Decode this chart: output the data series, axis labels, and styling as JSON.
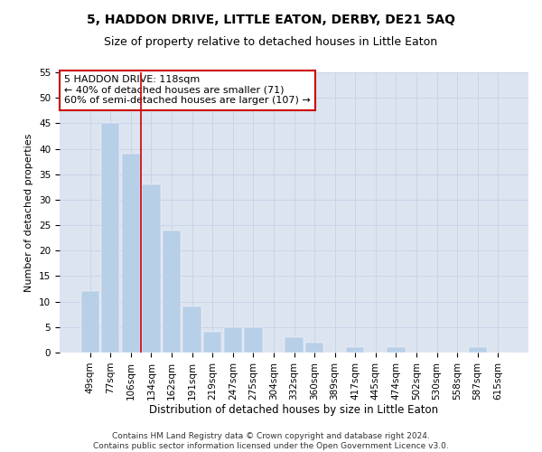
{
  "title": "5, HADDON DRIVE, LITTLE EATON, DERBY, DE21 5AQ",
  "subtitle": "Size of property relative to detached houses in Little Eaton",
  "xlabel": "Distribution of detached houses by size in Little Eaton",
  "ylabel": "Number of detached properties",
  "categories": [
    "49sqm",
    "77sqm",
    "106sqm",
    "134sqm",
    "162sqm",
    "191sqm",
    "219sqm",
    "247sqm",
    "275sqm",
    "304sqm",
    "332sqm",
    "360sqm",
    "389sqm",
    "417sqm",
    "445sqm",
    "474sqm",
    "502sqm",
    "530sqm",
    "558sqm",
    "587sqm",
    "615sqm"
  ],
  "values": [
    12,
    45,
    39,
    33,
    24,
    9,
    4,
    5,
    5,
    0,
    3,
    2,
    0,
    1,
    0,
    1,
    0,
    0,
    0,
    1,
    0
  ],
  "bar_color": "#b8cfe8",
  "bar_edge_color": "#b8cfe8",
  "vline_x": 2.5,
  "vline_color": "#cc0000",
  "annotation_text": "5 HADDON DRIVE: 118sqm\n← 40% of detached houses are smaller (71)\n60% of semi-detached houses are larger (107) →",
  "annotation_box_color": "#ffffff",
  "annotation_box_edge": "#cc0000",
  "ylim": [
    0,
    55
  ],
  "yticks": [
    0,
    5,
    10,
    15,
    20,
    25,
    30,
    35,
    40,
    45,
    50,
    55
  ],
  "grid_color": "#c8d4e8",
  "bg_color": "#dce4f0",
  "footer": "Contains HM Land Registry data © Crown copyright and database right 2024.\nContains public sector information licensed under the Open Government Licence v3.0.",
  "title_fontsize": 10,
  "subtitle_fontsize": 9,
  "xlabel_fontsize": 8.5,
  "ylabel_fontsize": 8,
  "tick_fontsize": 7.5,
  "annotation_fontsize": 8,
  "footer_fontsize": 6.5
}
